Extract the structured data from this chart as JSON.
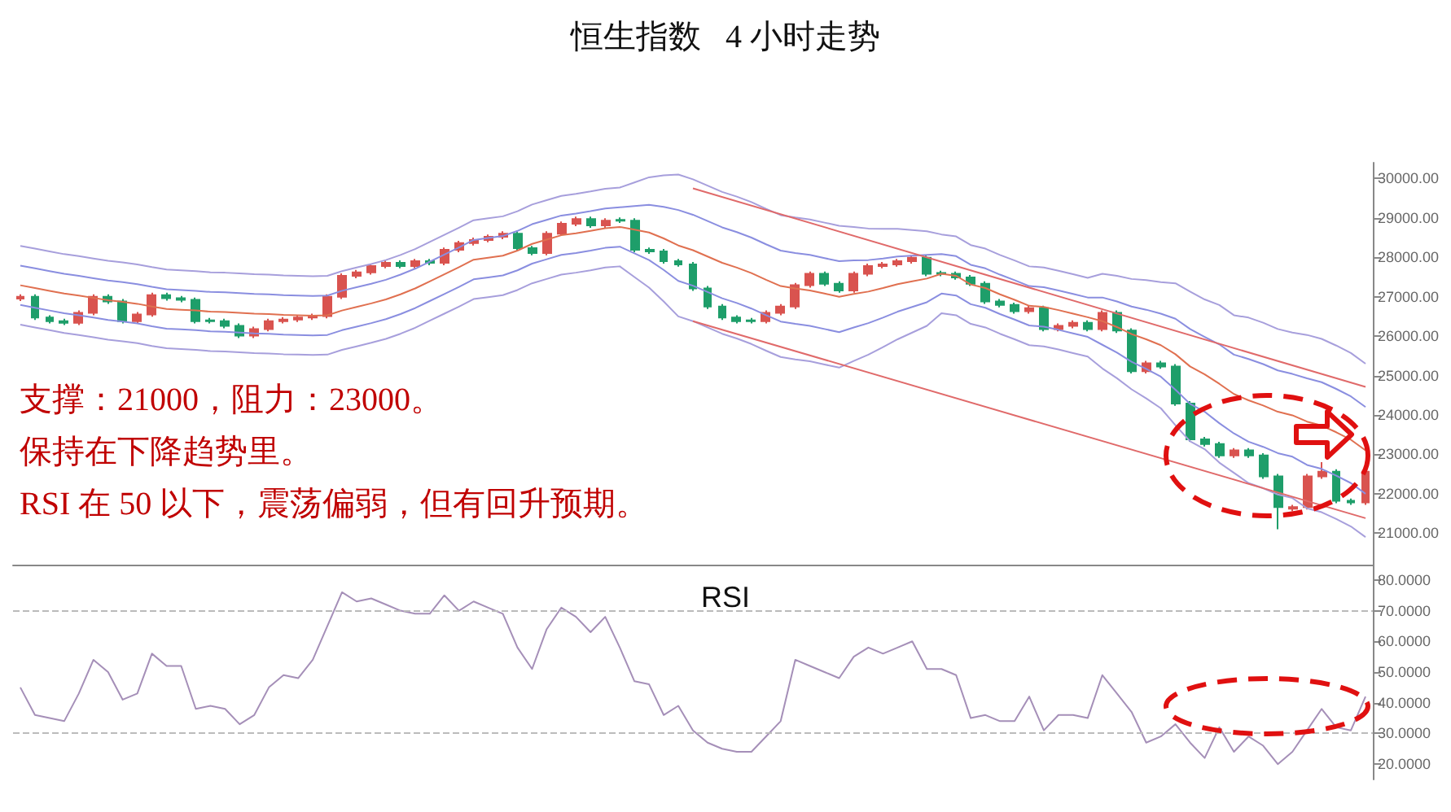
{
  "chart_data": [
    {
      "type": "candlestick",
      "title": "恒生指数   4 小时走势",
      "categories": [
        null,
        null,
        null,
        null,
        null,
        null,
        null,
        null,
        null,
        null,
        null,
        null,
        null,
        null,
        null,
        null,
        null,
        null,
        null,
        null,
        null,
        null,
        null,
        null,
        null,
        null,
        null,
        null,
        null,
        null,
        null,
        null,
        null,
        null,
        null,
        null,
        null,
        null,
        null,
        null,
        null,
        null,
        null,
        null,
        null,
        null,
        null,
        null,
        null,
        null,
        null,
        null,
        null,
        null,
        null,
        null,
        null,
        null,
        null,
        null,
        null,
        null,
        null,
        null,
        null,
        null,
        null,
        null,
        null,
        null,
        null,
        null,
        null,
        null,
        null,
        null,
        null,
        null,
        null,
        null,
        null,
        null,
        null,
        null,
        null,
        null,
        null,
        null,
        null,
        null,
        null,
        null,
        null
      ],
      "series": [
        {
          "type": "candlestick",
          "colors": [
            "#d9534f",
            "#1e9e6a",
            "#1e9e6a",
            "#1e9e6a",
            "#d9534f",
            "#d9534f",
            "#1e9e6a",
            "#1e9e6a",
            "#d9534f",
            "#d9534f",
            "#1e9e6a",
            "#1e9e6a",
            "#1e9e6a",
            "#1e9e6a",
            "#1e9e6a",
            "#1e9e6a",
            "#d9534f",
            "#d9534f",
            "#d9534f",
            "#d9534f",
            "#d9534f",
            "#d9534f",
            "#d9534f",
            "#d9534f",
            "#d9534f",
            "#d9534f",
            "#1e9e6a",
            "#d9534f",
            "#1e9e6a",
            "#d9534f",
            "#d9534f",
            "#d9534f",
            "#d9534f",
            "#d9534f",
            "#1e9e6a",
            "#1e9e6a",
            "#d9534f",
            "#d9534f",
            "#d9534f",
            "#1e9e6a",
            "#d9534f",
            "#1e9e6a",
            "#1e9e6a",
            "#1e9e6a",
            "#1e9e6a",
            "#1e9e6a",
            "#1e9e6a",
            "#1e9e6a",
            "#1e9e6a",
            "#1e9e6a",
            "#1e9e6a",
            "#d9534f",
            "#d9534f",
            "#d9534f",
            "#d9534f",
            "#1e9e6a",
            "#1e9e6a",
            "#d9534f",
            "#d9534f",
            "#d9534f",
            "#d9534f",
            "#d9534f",
            "#1e9e6a",
            "#1e9e6a",
            "#1e9e6a",
            "#1e9e6a",
            "#1e9e6a",
            "#1e9e6a",
            "#1e9e6a",
            "#d9534f",
            "#1e9e6a",
            "#d9534f",
            "#d9534f",
            "#1e9e6a",
            "#d9534f",
            "#1e9e6a",
            "#1e9e6a",
            "#d9534f",
            "#1e9e6a",
            "#1e9e6a",
            "#1e9e6a",
            "#1e9e6a",
            "#1e9e6a",
            "#d9534f",
            "#1e9e6a",
            "#1e9e6a",
            "#1e9e6a",
            "#d9534f",
            "#d9534f",
            "#d9534f",
            "#1e9e6a",
            "#1e9e6a",
            "#d9534f"
          ],
          "ohlc": [
            [
              26950,
              27060,
              26890,
              27000
            ],
            [
              27000,
              27060,
              26410,
              26470
            ],
            [
              26470,
              26530,
              26320,
              26380
            ],
            [
              26380,
              26440,
              26280,
              26340
            ],
            [
              26340,
              26650,
              26280,
              26590
            ],
            [
              26590,
              27060,
              26530,
              27000
            ],
            [
              27000,
              27060,
              26820,
              26880
            ],
            [
              26880,
              26940,
              26320,
              26380
            ],
            [
              26380,
              26610,
              26320,
              26550
            ],
            [
              26550,
              27100,
              26490,
              27040
            ],
            [
              27040,
              27100,
              26900,
              26960
            ],
            [
              26960,
              27020,
              26860,
              26920
            ],
            [
              26920,
              26980,
              26320,
              26380
            ],
            [
              26400,
              26460,
              26320,
              26380
            ],
            [
              26380,
              26440,
              26200,
              26260
            ],
            [
              26260,
              26320,
              25950,
              26010
            ],
            [
              26010,
              26240,
              25950,
              26180
            ],
            [
              26180,
              26440,
              26120,
              26380
            ],
            [
              26380,
              26480,
              26320,
              26420
            ],
            [
              26420,
              26530,
              26360,
              26470
            ],
            [
              26470,
              26570,
              26410,
              26510
            ],
            [
              26510,
              27060,
              26450,
              27000
            ],
            [
              27000,
              27590,
              26940,
              27530
            ],
            [
              27530,
              27680,
              27470,
              27620
            ],
            [
              27620,
              27840,
              27560,
              27780
            ],
            [
              27780,
              27920,
              27720,
              27860
            ],
            [
              27860,
              27920,
              27720,
              27780
            ],
            [
              27780,
              27960,
              27720,
              27900
            ],
            [
              27900,
              27960,
              27800,
              27860
            ],
            [
              27860,
              28250,
              27800,
              28190
            ],
            [
              28190,
              28420,
              28130,
              28360
            ],
            [
              28360,
              28500,
              28300,
              28440
            ],
            [
              28440,
              28580,
              28380,
              28520
            ],
            [
              28520,
              28660,
              28460,
              28600
            ],
            [
              28600,
              28660,
              28170,
              28230
            ],
            [
              28230,
              28290,
              28050,
              28110
            ],
            [
              28110,
              28660,
              28050,
              28600
            ],
            [
              28600,
              28910,
              28540,
              28850
            ],
            [
              28850,
              29030,
              28790,
              28970
            ],
            [
              28970,
              29030,
              28750,
              28810
            ],
            [
              28810,
              28990,
              28750,
              28930
            ],
            [
              28950,
              29010,
              28870,
              28930
            ],
            [
              28930,
              28990,
              28130,
              28190
            ],
            [
              28190,
              28250,
              28090,
              28150
            ],
            [
              28150,
              28210,
              27840,
              27900
            ],
            [
              27900,
              27960,
              27760,
              27820
            ],
            [
              27820,
              27880,
              27150,
              27210
            ],
            [
              27210,
              27270,
              26690,
              26750
            ],
            [
              26750,
              26810,
              26410,
              26470
            ],
            [
              26470,
              26530,
              26320,
              26380
            ],
            [
              26400,
              26460,
              26320,
              26380
            ],
            [
              26380,
              26650,
              26320,
              26590
            ],
            [
              26590,
              26810,
              26530,
              26750
            ],
            [
              26750,
              27350,
              26690,
              27290
            ],
            [
              27290,
              27640,
              27230,
              27580
            ],
            [
              27580,
              27640,
              27270,
              27330
            ],
            [
              27330,
              27390,
              27100,
              27160
            ],
            [
              27160,
              27640,
              27100,
              27580
            ],
            [
              27580,
              27840,
              27520,
              27780
            ],
            [
              27780,
              27880,
              27720,
              27820
            ],
            [
              27820,
              27960,
              27760,
              27900
            ],
            [
              27900,
              28050,
              27840,
              27990
            ],
            [
              27990,
              28050,
              27520,
              27580
            ],
            [
              27600,
              27660,
              27520,
              27580
            ],
            [
              27580,
              27640,
              27430,
              27490
            ],
            [
              27490,
              27550,
              27270,
              27330
            ],
            [
              27330,
              27390,
              26820,
              26880
            ],
            [
              26880,
              26940,
              26730,
              26790
            ],
            [
              26790,
              26850,
              26570,
              26630
            ],
            [
              26630,
              26770,
              26570,
              26710
            ],
            [
              26710,
              26770,
              26120,
              26180
            ],
            [
              26180,
              26320,
              26120,
              26260
            ],
            [
              26260,
              26400,
              26200,
              26340
            ],
            [
              26340,
              26400,
              26120,
              26180
            ],
            [
              26180,
              26650,
              26120,
              26590
            ],
            [
              26590,
              26650,
              26080,
              26140
            ],
            [
              26140,
              26200,
              25050,
              25110
            ],
            [
              25110,
              25370,
              25050,
              25310
            ],
            [
              25310,
              25370,
              25170,
              25230
            ],
            [
              25230,
              25290,
              24230,
              24290
            ],
            [
              24290,
              24350,
              23320,
              23380
            ],
            [
              23380,
              23440,
              23200,
              23260
            ],
            [
              23260,
              23320,
              22910,
              22970
            ],
            [
              22970,
              23160,
              22910,
              23100
            ],
            [
              23100,
              23160,
              22910,
              22970
            ],
            [
              22970,
              23030,
              22380,
              22440
            ],
            [
              22440,
              22500,
              21100,
              21660
            ],
            [
              21620,
              21720,
              21560,
              21660
            ],
            [
              21660,
              22500,
              21600,
              22440
            ],
            [
              22440,
              22800,
              22380,
              22560
            ],
            [
              22560,
              22620,
              21760,
              21820
            ],
            [
              21820,
              21880,
              21720,
              21780
            ],
            [
              21780,
              22620,
              21720,
              22560
            ]
          ]
        },
        {
          "type": "line",
          "color": "#a79fdc",
          "values": [
            28290,
            28220,
            28150,
            28080,
            28030,
            27970,
            27910,
            27870,
            27820,
            27750,
            27690,
            27670,
            27650,
            27620,
            27610,
            27590,
            27570,
            27560,
            27540,
            27530,
            27520,
            27530,
            27650,
            27740,
            27830,
            27930,
            28060,
            28210,
            28390,
            28570,
            28750,
            28940,
            28990,
            29040,
            29170,
            29340,
            29450,
            29560,
            29610,
            29670,
            29740,
            29770,
            29900,
            30030,
            30080,
            30100,
            29980,
            29820,
            29660,
            29540,
            29400,
            29230,
            29070,
            29010,
            28960,
            28880,
            28800,
            28770,
            28730,
            28720,
            28720,
            28690,
            28660,
            28580,
            28530,
            28310,
            28220,
            28060,
            27920,
            27770,
            27740,
            27660,
            27570,
            27480,
            27580,
            27530,
            27450,
            27420,
            27370,
            27340,
            27130,
            26930,
            26790,
            26530,
            26470,
            26340,
            26180,
            26090,
            26030,
            25930,
            25760,
            25570,
            25300
          ]
        },
        {
          "type": "line",
          "color": "#8a8ee0",
          "values": [
            27790,
            27720,
            27650,
            27580,
            27530,
            27470,
            27410,
            27370,
            27320,
            27250,
            27190,
            27170,
            27150,
            27120,
            27110,
            27090,
            27070,
            27060,
            27040,
            27030,
            27020,
            27030,
            27150,
            27240,
            27330,
            27430,
            27560,
            27710,
            27890,
            28070,
            28250,
            28440,
            28490,
            28540,
            28670,
            28840,
            28950,
            29060,
            29110,
            29170,
            29240,
            29270,
            29300,
            29330,
            29280,
            29200,
            29080,
            28920,
            28760,
            28640,
            28500,
            28330,
            28170,
            28110,
            28060,
            27980,
            27900,
            27920,
            27930,
            27970,
            28020,
            28040,
            28060,
            28080,
            28030,
            27810,
            27720,
            27560,
            27420,
            27270,
            27240,
            27160,
            27070,
            26980,
            26980,
            26880,
            26750,
            26670,
            26570,
            26440,
            26180,
            25980,
            25790,
            25530,
            25420,
            25290,
            25130,
            25040,
            24930,
            24830,
            24660,
            24470,
            24200
          ]
        },
        {
          "type": "line",
          "color": "#e07050",
          "values": [
            27290,
            27220,
            27150,
            27080,
            27030,
            26970,
            26910,
            26870,
            26820,
            26750,
            26690,
            26670,
            26650,
            26620,
            26610,
            26590,
            26570,
            26560,
            26540,
            26530,
            26520,
            26530,
            26650,
            26740,
            26830,
            26930,
            27060,
            27210,
            27390,
            27570,
            27750,
            27940,
            27990,
            28040,
            28170,
            28340,
            28450,
            28560,
            28610,
            28670,
            28740,
            28770,
            28700,
            28630,
            28480,
            28300,
            28180,
            28020,
            27860,
            27740,
            27600,
            27430,
            27270,
            27210,
            27160,
            27080,
            27000,
            27070,
            27130,
            27220,
            27320,
            27390,
            27460,
            27580,
            27530,
            27310,
            27220,
            27060,
            26920,
            26770,
            26740,
            26660,
            26570,
            26480,
            26380,
            26230,
            26050,
            25920,
            25770,
            25540,
            25230,
            25030,
            24790,
            24530,
            24370,
            24240,
            24080,
            23990,
            23830,
            23730,
            23560,
            23370,
            23100
          ]
        },
        {
          "type": "line",
          "color": "#8a8ee0",
          "values": [
            26790,
            26720,
            26650,
            26580,
            26530,
            26470,
            26410,
            26370,
            26320,
            26250,
            26190,
            26170,
            26150,
            26120,
            26110,
            26090,
            26070,
            26060,
            26040,
            26030,
            26020,
            26030,
            26150,
            26240,
            26330,
            26430,
            26560,
            26710,
            26890,
            27070,
            27250,
            27440,
            27490,
            27540,
            27670,
            27840,
            27950,
            28060,
            28110,
            28170,
            28240,
            28270,
            28100,
            27930,
            27680,
            27400,
            27280,
            27120,
            26960,
            26840,
            26700,
            26530,
            26370,
            26310,
            26260,
            26180,
            26100,
            26220,
            26330,
            26470,
            26620,
            26740,
            26860,
            27080,
            27030,
            26810,
            26720,
            26560,
            26420,
            26270,
            26240,
            26160,
            26070,
            25980,
            25780,
            25580,
            25350,
            25170,
            24970,
            24640,
            24280,
            24080,
            23790,
            23530,
            23320,
            23190,
            23030,
            22940,
            22730,
            22630,
            22460,
            22270,
            22000
          ]
        },
        {
          "type": "line",
          "color": "#a79fdc",
          "values": [
            26290,
            26220,
            26150,
            26080,
            26030,
            25970,
            25910,
            25870,
            25820,
            25750,
            25690,
            25670,
            25650,
            25620,
            25610,
            25590,
            25570,
            25560,
            25540,
            25530,
            25520,
            25530,
            25650,
            25740,
            25830,
            25930,
            26060,
            26210,
            26390,
            26570,
            26750,
            26940,
            26990,
            27040,
            27170,
            27340,
            27450,
            27560,
            27610,
            27670,
            27740,
            27770,
            27500,
            27230,
            26880,
            26500,
            26380,
            26220,
            26060,
            25940,
            25800,
            25630,
            25470,
            25410,
            25360,
            25280,
            25200,
            25370,
            25530,
            25720,
            25920,
            26090,
            26260,
            26580,
            26530,
            26310,
            26220,
            26060,
            25920,
            25770,
            25740,
            25660,
            25570,
            25480,
            25180,
            24930,
            24650,
            24420,
            24170,
            23740,
            23330,
            23130,
            22790,
            22530,
            22270,
            22140,
            21980,
            21890,
            21630,
            21530,
            21360,
            21170,
            20900
          ]
        },
        {
          "type": "line",
          "color": "#e06a6a",
          "values": [
            null,
            null,
            null,
            null,
            null,
            null,
            null,
            null,
            null,
            null,
            null,
            null,
            null,
            null,
            null,
            null,
            null,
            null,
            null,
            null,
            null,
            null,
            null,
            null,
            null,
            null,
            null,
            null,
            null,
            null,
            null,
            null,
            null,
            null,
            null,
            null,
            null,
            null,
            null,
            null,
            null,
            null,
            null,
            null,
            null,
            null,
            29750,
            null,
            null,
            null,
            null,
            null,
            null,
            null,
            null,
            null,
            null,
            null,
            null,
            null,
            null,
            null,
            null,
            null,
            null,
            null,
            null,
            null,
            null,
            null,
            null,
            null,
            null,
            null,
            null,
            null,
            null,
            null,
            null,
            null,
            null,
            null,
            null,
            null,
            null,
            null,
            null,
            null,
            null,
            null,
            null,
            null,
            24710
          ]
        },
        {
          "type": "line",
          "color": "#e06a6a",
          "values": [
            null,
            null,
            null,
            null,
            null,
            null,
            null,
            null,
            null,
            null,
            null,
            null,
            null,
            null,
            null,
            null,
            null,
            null,
            null,
            null,
            null,
            null,
            null,
            null,
            null,
            null,
            null,
            null,
            null,
            null,
            null,
            null,
            null,
            null,
            null,
            null,
            null,
            null,
            null,
            null,
            null,
            null,
            null,
            null,
            null,
            null,
            26380,
            null,
            null,
            null,
            null,
            null,
            null,
            null,
            null,
            null,
            null,
            null,
            null,
            null,
            null,
            null,
            null,
            null,
            null,
            null,
            null,
            null,
            null,
            null,
            null,
            null,
            null,
            null,
            null,
            null,
            null,
            null,
            null,
            null,
            null,
            null,
            null,
            null,
            null,
            null,
            null,
            null,
            null,
            null,
            null,
            null,
            21380
          ]
        }
      ],
      "ylim": [
        20200,
        30400
      ],
      "yticks": [
        {
          "value": 21000,
          "label": "21000.00"
        },
        {
          "value": 22000,
          "label": "22000.00"
        },
        {
          "value": 23000,
          "label": "23000.00"
        },
        {
          "value": 24000,
          "label": "24000.00"
        },
        {
          "value": 25000,
          "label": "25000.00"
        },
        {
          "value": 26000,
          "label": "26000.00"
        },
        {
          "value": 27000,
          "label": "27000.00"
        },
        {
          "value": 28000,
          "label": "28000.00"
        },
        {
          "value": 29000,
          "label": "29000.00"
        },
        {
          "value": 30000,
          "label": "30000.00"
        }
      ],
      "tick_labels": "y",
      "annotations": [
        "支撑：21000，阻力：23000。",
        "保持在下降趋势里。",
        "RSI 在 50 以下，震荡偏弱，但有回升预期。"
      ]
    },
    {
      "type": "line",
      "title": "RSI",
      "categories": [
        null,
        null,
        null,
        null,
        null,
        null,
        null,
        null,
        null,
        null,
        null,
        null,
        null,
        null,
        null,
        null,
        null,
        null,
        null,
        null,
        null,
        null,
        null,
        null,
        null,
        null,
        null,
        null,
        null,
        null,
        null,
        null,
        null,
        null,
        null,
        null,
        null,
        null,
        null,
        null,
        null,
        null,
        null,
        null,
        null,
        null,
        null,
        null,
        null,
        null,
        null,
        null,
        null,
        null,
        null,
        null,
        null,
        null,
        null,
        null,
        null,
        null,
        null,
        null,
        null,
        null,
        null,
        null,
        null,
        null,
        null,
        null,
        null,
        null,
        null,
        null,
        null,
        null,
        null,
        null,
        null,
        null,
        null,
        null,
        null,
        null,
        null,
        null,
        null,
        null,
        null,
        null,
        null
      ],
      "series": [
        {
          "color": "#a58fb8",
          "values": [
            45,
            36,
            35,
            34,
            43,
            54,
            50,
            41,
            43,
            56,
            52,
            52,
            38,
            39,
            38,
            33,
            36,
            45,
            49,
            48,
            54,
            65,
            76,
            73,
            74,
            72,
            70,
            69,
            69,
            75,
            70,
            73,
            71,
            69,
            58,
            51,
            64,
            71,
            68,
            63,
            68,
            58,
            47,
            46,
            36,
            39,
            31,
            27,
            25,
            24,
            24,
            29,
            34,
            54,
            52,
            50,
            48,
            55,
            58,
            56,
            58,
            60,
            51,
            51,
            49,
            35,
            36,
            34,
            34,
            42,
            31,
            36,
            36,
            35,
            49,
            43,
            37,
            27,
            29,
            33,
            27,
            22,
            32,
            24,
            29,
            26,
            20,
            24,
            31,
            38,
            32,
            31,
            42
          ]
        }
      ],
      "ylim": [
        15,
        85
      ],
      "yticks": [
        {
          "value": 20,
          "label": "20.0000"
        },
        {
          "value": 30,
          "label": "30.0000"
        },
        {
          "value": 40,
          "label": "40.0000"
        },
        {
          "value": 50,
          "label": "50.0000"
        },
        {
          "value": 60,
          "label": "60.0000"
        },
        {
          "value": 70,
          "label": "70.0000"
        },
        {
          "value": 80,
          "label": "80.0000"
        }
      ],
      "tick_labels": "y",
      "ref_lines": [
        {
          "axis": "y",
          "value": 70,
          "label": null,
          "color": "#bbbbbb",
          "line_style": "dashed"
        },
        {
          "axis": "y",
          "value": 30,
          "label": null,
          "color": "#bbbbbb",
          "line_style": "dashed"
        }
      ]
    }
  ]
}
